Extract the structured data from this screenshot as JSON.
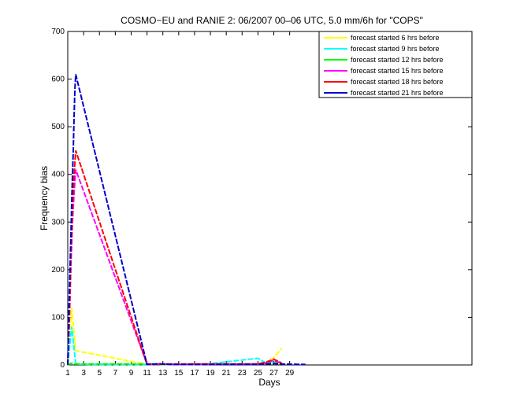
{
  "chart_data": {
    "type": "line",
    "title": "COSMO−EU and RANIE 2: 06/2007 00–06 UTC, 5.0 mm/6h for \"COPS\"",
    "xlabel": "Days",
    "ylabel": "Frequency bias",
    "xlim": [
      1,
      52
    ],
    "ylim": [
      0,
      700
    ],
    "x_ticks": [
      1,
      3,
      5,
      7,
      9,
      11,
      13,
      15,
      17,
      19,
      21,
      23,
      25,
      27,
      29
    ],
    "y_ticks": [
      0,
      100,
      200,
      300,
      400,
      500,
      600,
      700
    ],
    "grid": false,
    "legend_position": "top-right",
    "series": [
      {
        "name": "forecast started 6 hrs before",
        "color": "#ffff00",
        "x": [
          1,
          1.5,
          2,
          11,
          12,
          13,
          14,
          25,
          26,
          27,
          28
        ],
        "y": [
          0,
          120,
          30,
          1,
          2,
          1,
          1,
          2,
          3,
          15,
          35
        ]
      },
      {
        "name": "forecast started 9 hrs before",
        "color": "#00ffff",
        "x": [
          1,
          1.5,
          2,
          4,
          11,
          13,
          17,
          18,
          25,
          26,
          27,
          28
        ],
        "y": [
          0,
          80,
          2,
          1,
          1,
          2,
          1,
          1,
          14,
          4,
          8,
          3
        ]
      },
      {
        "name": "forecast started 12 hrs before",
        "color": "#00ff00",
        "x": [
          1,
          1.3,
          1.6,
          2,
          11,
          13,
          17,
          18,
          25,
          26,
          27,
          28
        ],
        "y": [
          0,
          3,
          4,
          2,
          2,
          1,
          1,
          2,
          2,
          3,
          5,
          2
        ]
      },
      {
        "name": "forecast started 15 hrs before",
        "color": "#ff00ff",
        "x": [
          1,
          1.2,
          1.4,
          1.6,
          1.8,
          2,
          11,
          13,
          14,
          25,
          26,
          27,
          28
        ],
        "y": [
          0,
          90,
          210,
          300,
          360,
          410,
          2,
          2,
          1,
          2,
          4,
          10,
          3
        ]
      },
      {
        "name": "forecast started 18 hrs before",
        "color": "#ff0000",
        "x": [
          1,
          1.2,
          1.4,
          1.6,
          1.8,
          2,
          11,
          13,
          25,
          26,
          27,
          28
        ],
        "y": [
          0,
          100,
          230,
          330,
          400,
          450,
          1,
          2,
          2,
          6,
          12,
          4
        ]
      },
      {
        "name": "forecast started 21 hrs before",
        "color": "#0000cc",
        "x": [
          1,
          1.1,
          1.2,
          1.3,
          1.4,
          1.5,
          1.6,
          1.7,
          1.8,
          1.9,
          2,
          11,
          12,
          13,
          14,
          25,
          26,
          27,
          28,
          31
        ],
        "y": [
          0,
          70,
          150,
          210,
          270,
          340,
          400,
          450,
          520,
          580,
          610,
          1,
          2,
          2,
          1,
          1,
          2,
          3,
          2,
          1
        ]
      }
    ]
  }
}
